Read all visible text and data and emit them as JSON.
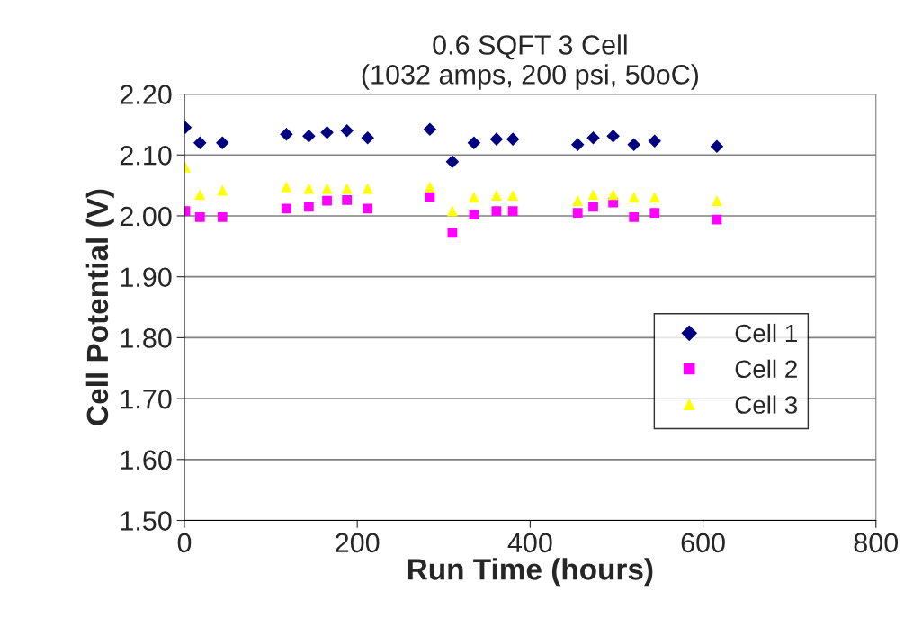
{
  "chart_data": {
    "type": "scatter",
    "title": "0.6 SQFT 3 Cell\n(1032 amps, 200 psi, 50oC)",
    "xlabel": "Run Time (hours)",
    "ylabel": "Cell Potential (V)",
    "x": [
      1,
      18,
      44,
      118,
      144,
      165,
      188,
      212,
      284,
      310,
      335,
      361,
      380,
      455,
      473,
      496,
      520,
      544,
      616
    ],
    "series": [
      {
        "name": "Cell 1",
        "color": "#000080",
        "marker": "diamond",
        "values": [
          2.145,
          2.12,
          2.12,
          2.134,
          2.131,
          2.137,
          2.14,
          2.128,
          2.142,
          2.089,
          2.12,
          2.126,
          2.126,
          2.117,
          2.128,
          2.131,
          2.117,
          2.123,
          2.114
        ]
      },
      {
        "name": "Cell 2",
        "color": "#ff00ff",
        "marker": "square",
        "values": [
          2.008,
          1.998,
          1.998,
          2.012,
          2.015,
          2.025,
          2.026,
          2.012,
          2.031,
          1.972,
          2.002,
          2.008,
          2.008,
          2.005,
          2.015,
          2.022,
          1.998,
          2.005,
          1.994
        ]
      },
      {
        "name": "Cell 3",
        "color": "#ffff00",
        "marker": "triangle",
        "values": [
          2.08,
          2.035,
          2.042,
          2.048,
          2.045,
          2.045,
          2.045,
          2.045,
          2.048,
          2.008,
          2.031,
          2.034,
          2.034,
          2.025,
          2.035,
          2.035,
          2.031,
          2.031,
          2.025
        ]
      }
    ],
    "xlim": [
      0,
      800
    ],
    "xticks": [
      0,
      200,
      400,
      600,
      800
    ],
    "ylim": [
      1.5,
      2.2
    ],
    "yticks": [
      {
        "value": 1.5,
        "label": "1.50"
      },
      {
        "value": 1.6,
        "label": "1.60"
      },
      {
        "value": 1.7,
        "label": "1.70"
      },
      {
        "value": 1.8,
        "label": "1.80"
      },
      {
        "value": 1.9,
        "label": "1.90"
      },
      {
        "value": 2.0,
        "label": "2.00"
      },
      {
        "value": 2.1,
        "label": "2.10"
      },
      {
        "value": 2.2,
        "label": "2.20"
      }
    ],
    "grid": "y",
    "legend": "right"
  }
}
